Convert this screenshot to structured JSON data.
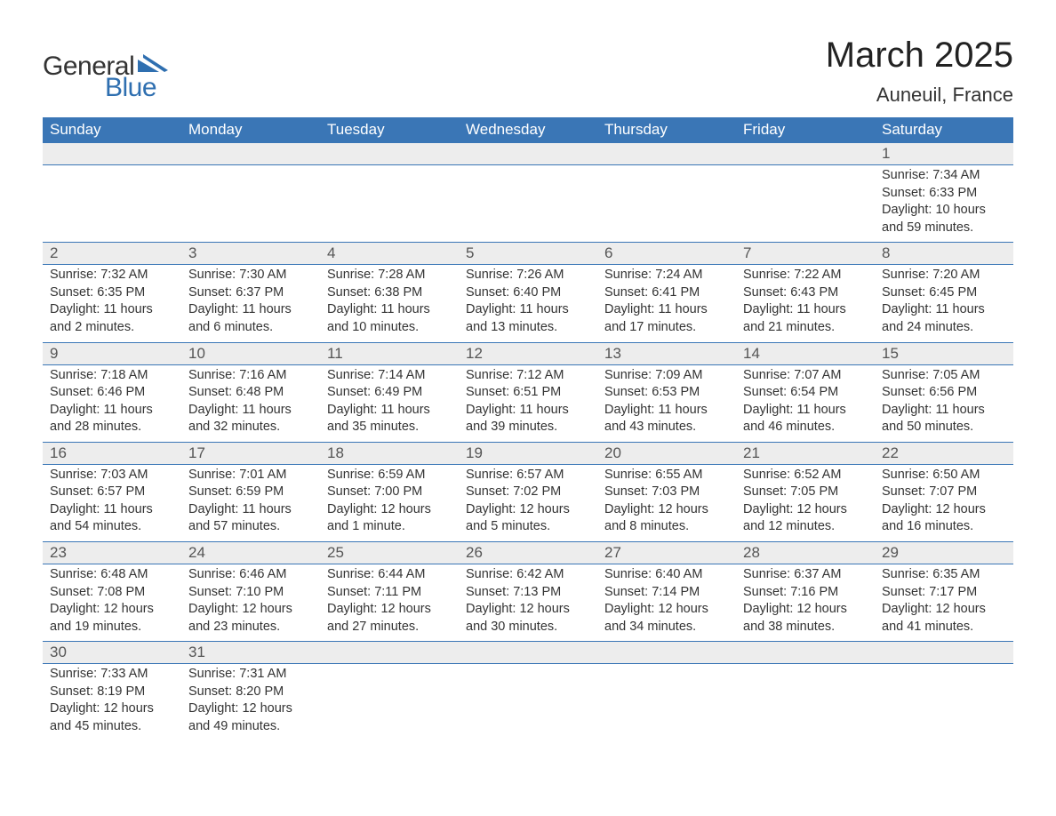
{
  "logo": {
    "text1": "General",
    "text2": "Blue",
    "tri_color": "#2f6fb0"
  },
  "title": "March 2025",
  "location": "Auneuil, France",
  "colors": {
    "header_bg": "#3a76b6",
    "header_fg": "#ffffff",
    "daynum_bg": "#ededed",
    "row_border": "#3a76b6",
    "text": "#333333"
  },
  "typography": {
    "title_fontsize": 40,
    "location_fontsize": 22,
    "header_fontsize": 17,
    "daynum_fontsize": 17,
    "detail_fontsize": 14.5
  },
  "weekdays": [
    "Sunday",
    "Monday",
    "Tuesday",
    "Wednesday",
    "Thursday",
    "Friday",
    "Saturday"
  ],
  "weeks": [
    [
      {
        "day": "",
        "sunrise": "",
        "sunset": "",
        "daylight": ""
      },
      {
        "day": "",
        "sunrise": "",
        "sunset": "",
        "daylight": ""
      },
      {
        "day": "",
        "sunrise": "",
        "sunset": "",
        "daylight": ""
      },
      {
        "day": "",
        "sunrise": "",
        "sunset": "",
        "daylight": ""
      },
      {
        "day": "",
        "sunrise": "",
        "sunset": "",
        "daylight": ""
      },
      {
        "day": "",
        "sunrise": "",
        "sunset": "",
        "daylight": ""
      },
      {
        "day": "1",
        "sunrise": "Sunrise: 7:34 AM",
        "sunset": "Sunset: 6:33 PM",
        "daylight": "Daylight: 10 hours and 59 minutes."
      }
    ],
    [
      {
        "day": "2",
        "sunrise": "Sunrise: 7:32 AM",
        "sunset": "Sunset: 6:35 PM",
        "daylight": "Daylight: 11 hours and 2 minutes."
      },
      {
        "day": "3",
        "sunrise": "Sunrise: 7:30 AM",
        "sunset": "Sunset: 6:37 PM",
        "daylight": "Daylight: 11 hours and 6 minutes."
      },
      {
        "day": "4",
        "sunrise": "Sunrise: 7:28 AM",
        "sunset": "Sunset: 6:38 PM",
        "daylight": "Daylight: 11 hours and 10 minutes."
      },
      {
        "day": "5",
        "sunrise": "Sunrise: 7:26 AM",
        "sunset": "Sunset: 6:40 PM",
        "daylight": "Daylight: 11 hours and 13 minutes."
      },
      {
        "day": "6",
        "sunrise": "Sunrise: 7:24 AM",
        "sunset": "Sunset: 6:41 PM",
        "daylight": "Daylight: 11 hours and 17 minutes."
      },
      {
        "day": "7",
        "sunrise": "Sunrise: 7:22 AM",
        "sunset": "Sunset: 6:43 PM",
        "daylight": "Daylight: 11 hours and 21 minutes."
      },
      {
        "day": "8",
        "sunrise": "Sunrise: 7:20 AM",
        "sunset": "Sunset: 6:45 PM",
        "daylight": "Daylight: 11 hours and 24 minutes."
      }
    ],
    [
      {
        "day": "9",
        "sunrise": "Sunrise: 7:18 AM",
        "sunset": "Sunset: 6:46 PM",
        "daylight": "Daylight: 11 hours and 28 minutes."
      },
      {
        "day": "10",
        "sunrise": "Sunrise: 7:16 AM",
        "sunset": "Sunset: 6:48 PM",
        "daylight": "Daylight: 11 hours and 32 minutes."
      },
      {
        "day": "11",
        "sunrise": "Sunrise: 7:14 AM",
        "sunset": "Sunset: 6:49 PM",
        "daylight": "Daylight: 11 hours and 35 minutes."
      },
      {
        "day": "12",
        "sunrise": "Sunrise: 7:12 AM",
        "sunset": "Sunset: 6:51 PM",
        "daylight": "Daylight: 11 hours and 39 minutes."
      },
      {
        "day": "13",
        "sunrise": "Sunrise: 7:09 AM",
        "sunset": "Sunset: 6:53 PM",
        "daylight": "Daylight: 11 hours and 43 minutes."
      },
      {
        "day": "14",
        "sunrise": "Sunrise: 7:07 AM",
        "sunset": "Sunset: 6:54 PM",
        "daylight": "Daylight: 11 hours and 46 minutes."
      },
      {
        "day": "15",
        "sunrise": "Sunrise: 7:05 AM",
        "sunset": "Sunset: 6:56 PM",
        "daylight": "Daylight: 11 hours and 50 minutes."
      }
    ],
    [
      {
        "day": "16",
        "sunrise": "Sunrise: 7:03 AM",
        "sunset": "Sunset: 6:57 PM",
        "daylight": "Daylight: 11 hours and 54 minutes."
      },
      {
        "day": "17",
        "sunrise": "Sunrise: 7:01 AM",
        "sunset": "Sunset: 6:59 PM",
        "daylight": "Daylight: 11 hours and 57 minutes."
      },
      {
        "day": "18",
        "sunrise": "Sunrise: 6:59 AM",
        "sunset": "Sunset: 7:00 PM",
        "daylight": "Daylight: 12 hours and 1 minute."
      },
      {
        "day": "19",
        "sunrise": "Sunrise: 6:57 AM",
        "sunset": "Sunset: 7:02 PM",
        "daylight": "Daylight: 12 hours and 5 minutes."
      },
      {
        "day": "20",
        "sunrise": "Sunrise: 6:55 AM",
        "sunset": "Sunset: 7:03 PM",
        "daylight": "Daylight: 12 hours and 8 minutes."
      },
      {
        "day": "21",
        "sunrise": "Sunrise: 6:52 AM",
        "sunset": "Sunset: 7:05 PM",
        "daylight": "Daylight: 12 hours and 12 minutes."
      },
      {
        "day": "22",
        "sunrise": "Sunrise: 6:50 AM",
        "sunset": "Sunset: 7:07 PM",
        "daylight": "Daylight: 12 hours and 16 minutes."
      }
    ],
    [
      {
        "day": "23",
        "sunrise": "Sunrise: 6:48 AM",
        "sunset": "Sunset: 7:08 PM",
        "daylight": "Daylight: 12 hours and 19 minutes."
      },
      {
        "day": "24",
        "sunrise": "Sunrise: 6:46 AM",
        "sunset": "Sunset: 7:10 PM",
        "daylight": "Daylight: 12 hours and 23 minutes."
      },
      {
        "day": "25",
        "sunrise": "Sunrise: 6:44 AM",
        "sunset": "Sunset: 7:11 PM",
        "daylight": "Daylight: 12 hours and 27 minutes."
      },
      {
        "day": "26",
        "sunrise": "Sunrise: 6:42 AM",
        "sunset": "Sunset: 7:13 PM",
        "daylight": "Daylight: 12 hours and 30 minutes."
      },
      {
        "day": "27",
        "sunrise": "Sunrise: 6:40 AM",
        "sunset": "Sunset: 7:14 PM",
        "daylight": "Daylight: 12 hours and 34 minutes."
      },
      {
        "day": "28",
        "sunrise": "Sunrise: 6:37 AM",
        "sunset": "Sunset: 7:16 PM",
        "daylight": "Daylight: 12 hours and 38 minutes."
      },
      {
        "day": "29",
        "sunrise": "Sunrise: 6:35 AM",
        "sunset": "Sunset: 7:17 PM",
        "daylight": "Daylight: 12 hours and 41 minutes."
      }
    ],
    [
      {
        "day": "30",
        "sunrise": "Sunrise: 7:33 AM",
        "sunset": "Sunset: 8:19 PM",
        "daylight": "Daylight: 12 hours and 45 minutes."
      },
      {
        "day": "31",
        "sunrise": "Sunrise: 7:31 AM",
        "sunset": "Sunset: 8:20 PM",
        "daylight": "Daylight: 12 hours and 49 minutes."
      },
      {
        "day": "",
        "sunrise": "",
        "sunset": "",
        "daylight": ""
      },
      {
        "day": "",
        "sunrise": "",
        "sunset": "",
        "daylight": ""
      },
      {
        "day": "",
        "sunrise": "",
        "sunset": "",
        "daylight": ""
      },
      {
        "day": "",
        "sunrise": "",
        "sunset": "",
        "daylight": ""
      },
      {
        "day": "",
        "sunrise": "",
        "sunset": "",
        "daylight": ""
      }
    ]
  ]
}
